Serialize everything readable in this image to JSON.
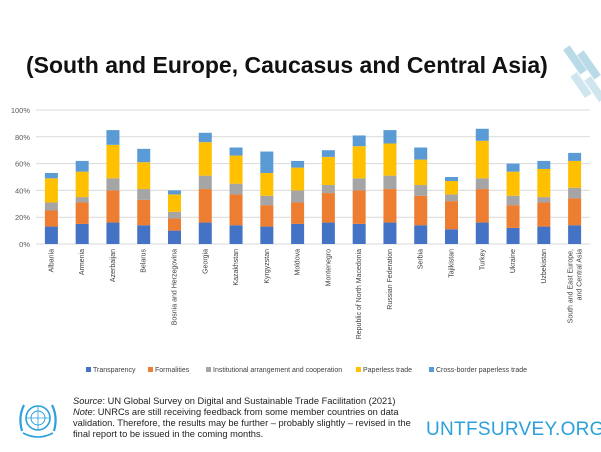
{
  "slide": {
    "title": "(South and Europe, Caucasus and Central Asia)",
    "source_label": "Source",
    "source_text": ": UN Global Survey on Digital and Sustainable Trade Facilitation (2021)",
    "note_label": "Note",
    "note_text": ": UNRCs are still receiving feedback from some member countries on data validation. Therefore, the results may be further – probably slightly – revised in the final report to be issued in the coming months.",
    "brand": "UNTFSURVEY.ORG"
  },
  "colors": {
    "Transparency": "#4472c4",
    "Formalities": "#ed7d31",
    "Institutional arrangement and cooperation": "#a5a5a5",
    "Paperless trade": "#ffc000",
    "Cross-border paperless trade": "#5b9bd5",
    "brand": "#2aa0dc"
  },
  "chart_data": {
    "type": "bar",
    "stacked": true,
    "ylim": [
      0,
      100
    ],
    "yticks": [
      "0%",
      "20%",
      "40%",
      "60%",
      "80%",
      "100%"
    ],
    "grid": true,
    "legend_position": "bottom",
    "categories": [
      "Albania",
      "Armenia",
      "Azerbaijan",
      "Belarus",
      "Bosnia and Herzegovina",
      "Georgia",
      "Kazakhstan",
      "Kyrgyzstan",
      "Moldova",
      "Montenegro",
      "Republic of North Macedonia",
      "Russian Federation",
      "Serbia",
      "Tajikistan",
      "Turkey",
      "Ukraine",
      "Uzbekistan",
      "South and East Europe, Caucasus and Central Asia"
    ],
    "series": [
      {
        "name": "Transparency",
        "values": [
          13,
          15,
          16,
          14,
          10,
          16,
          14,
          13,
          15,
          16,
          15,
          16,
          14,
          11,
          16,
          12,
          13,
          14
        ]
      },
      {
        "name": "Formalities",
        "values": [
          12,
          16,
          24,
          19,
          9,
          25,
          23,
          16,
          16,
          22,
          25,
          25,
          22,
          21,
          25,
          17,
          18,
          20
        ]
      },
      {
        "name": "Institutional arrangement and cooperation",
        "values": [
          6,
          4,
          9,
          8,
          5,
          10,
          8,
          7,
          9,
          6,
          9,
          10,
          8,
          5,
          8,
          7,
          4,
          8
        ]
      },
      {
        "name": "Paperless trade",
        "values": [
          18,
          19,
          25,
          20,
          13,
          25,
          21,
          17,
          17,
          21,
          24,
          24,
          19,
          10,
          28,
          18,
          21,
          20
        ]
      },
      {
        "name": "Cross-border paperless trade",
        "values": [
          4,
          8,
          11,
          10,
          3,
          7,
          6,
          16,
          5,
          5,
          8,
          10,
          9,
          3,
          9,
          6,
          6,
          6
        ]
      }
    ]
  }
}
